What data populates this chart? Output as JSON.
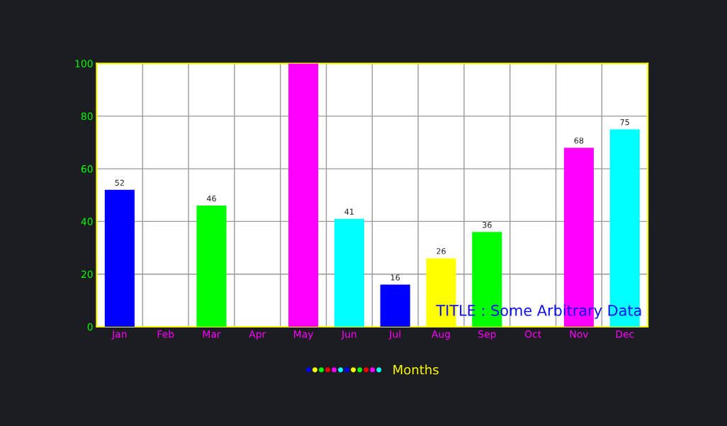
{
  "chart_data": {
    "type": "bar",
    "title": "TITLE : Some Arbitrary Data",
    "categories": [
      "Jan",
      "Feb",
      "Mar",
      "Apr",
      "May",
      "Jun",
      "Jul",
      "Aug",
      "Sep",
      "Oct",
      "Nov",
      "Dec"
    ],
    "series": [
      {
        "name": "Months",
        "values": [
          52,
          null,
          46,
          null,
          100,
          41,
          16,
          26,
          36,
          null,
          68,
          75
        ],
        "colors": [
          "#0000ff",
          "#ffff00",
          "#00ff00",
          "#ff0000",
          "#ff00ff",
          "#00ffff",
          "#0000ff",
          "#ffff00",
          "#00ff00",
          "#ff0000",
          "#ff00ff",
          "#00ffff"
        ],
        "value_labels": [
          "52",
          null,
          "46",
          null,
          null,
          "41",
          "16",
          "26",
          "36",
          null,
          "68",
          "75"
        ]
      }
    ],
    "ylim": [
      0,
      100
    ],
    "yticks": [
      0,
      20,
      40,
      60,
      80,
      100
    ],
    "grid": true,
    "legend": "bottom"
  }
}
